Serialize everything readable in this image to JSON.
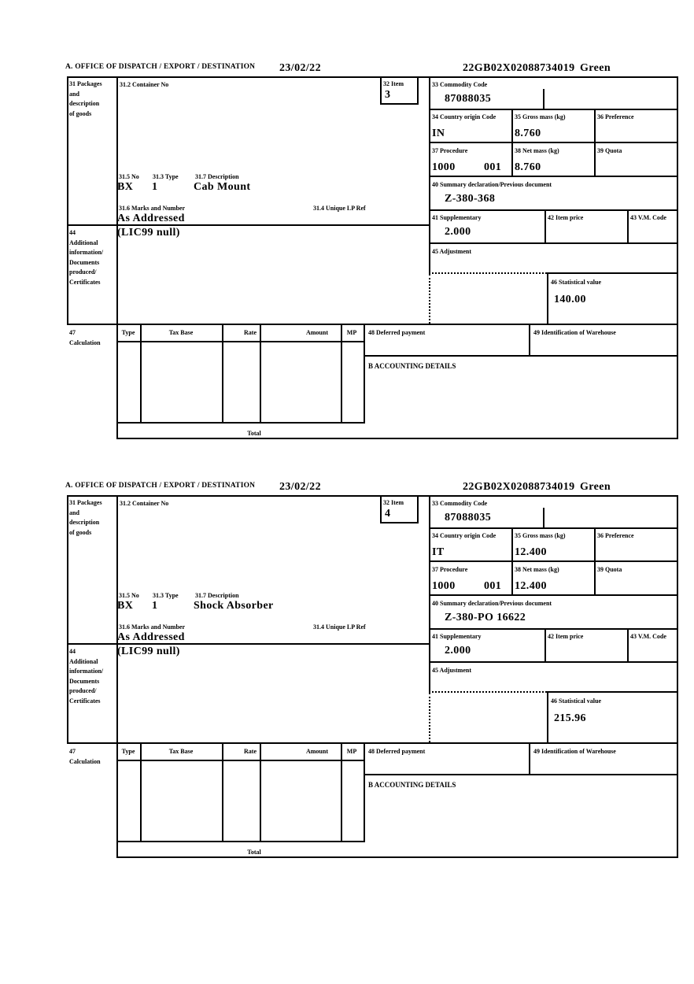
{
  "page": {
    "background": "#ffffff",
    "ink": "#000000"
  },
  "labels": {
    "box31": "31 Packages\nand\ndescription\nof goods",
    "box31_2": "31.2 Container No",
    "box32": "32 Item",
    "box33": "33 Commodity Code",
    "box34": "34 Country origin Code",
    "box35": "35 Gross mass (kg)",
    "box36": "36 Preference",
    "box37": "37 Procedure",
    "box38": "38 Net mass (kg)",
    "box39": "39 Quota",
    "box40": "40 Summary declaration/Previous document",
    "box41": "41 Supplementary",
    "box42": "42 Item price",
    "box43": "43 V.M. Code",
    "box44": "44\nAdditional\ninformation/\nDocuments\nproduced/\nCertificates",
    "box45": "45 Adjustment",
    "box46": "46 Statistical value",
    "box47": "47\nCalculation",
    "box48": "48 Deferred payment",
    "box49": "49 Identification of Warehouse",
    "accounting": "B ACCOUNTING DETAILS",
    "box31_5": "31.5 No",
    "box31_3": "31.3 Type",
    "box31_7": "31.7 Description",
    "box31_6": "31.6 Marks and Number",
    "box31_4": "31.4 Unique LP Ref",
    "calc_type": "Type",
    "calc_tax_base": "Tax Base",
    "calc_rate": "Rate",
    "calc_amount": "Amount",
    "calc_mp": "MP",
    "calc_total": "Total"
  },
  "sections": [
    {
      "header": {
        "office": "A.  OFFICE OF DISPATCH / EXPORT / DESTINATION",
        "date": "23/02/22",
        "reference": "22GB02X02088734019",
        "status": "Green"
      },
      "values": {
        "item_no": "3",
        "commodity_code": "87088035",
        "country_origin": "IN",
        "gross_mass": "8.760",
        "procedure": "1000",
        "procedure_ext": "001",
        "net_mass": "8.760",
        "previous_document": "Z-380-368",
        "supplementary": "2.000",
        "package_no": "BX",
        "package_type": "1",
        "description": "Cab Mount",
        "marks": "As Addressed",
        "additional_info": "(LIC99 null)",
        "statistical_value": "140.00"
      }
    },
    {
      "header": {
        "office": "A.  OFFICE OF DISPATCH / EXPORT / DESTINATION",
        "date": "23/02/22",
        "reference": "22GB02X02088734019",
        "status": "Green"
      },
      "values": {
        "item_no": "4",
        "commodity_code": "87088035",
        "country_origin": "IT",
        "gross_mass": "12.400",
        "procedure": "1000",
        "procedure_ext": "001",
        "net_mass": "12.400",
        "previous_document": "Z-380-PO 16622",
        "supplementary": "2.000",
        "package_no": "BX",
        "package_type": "1",
        "description": "Shock Absorber",
        "marks": "As Addressed",
        "additional_info": "(LIC99 null)",
        "statistical_value": "215.96"
      }
    }
  ]
}
